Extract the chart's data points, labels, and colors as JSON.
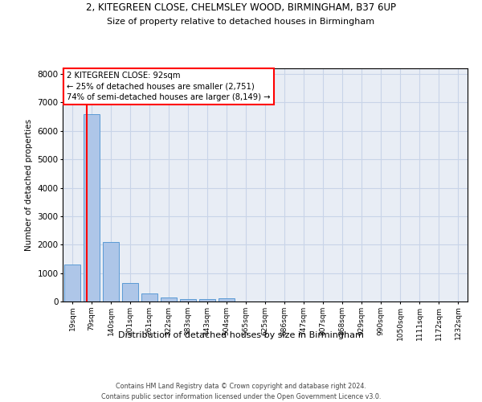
{
  "title_line1": "2, KITEGREEN CLOSE, CHELMSLEY WOOD, BIRMINGHAM, B37 6UP",
  "title_line2": "Size of property relative to detached houses in Birmingham",
  "xlabel": "Distribution of detached houses by size in Birmingham",
  "ylabel": "Number of detached properties",
  "categories": [
    "19sqm",
    "79sqm",
    "140sqm",
    "201sqm",
    "261sqm",
    "322sqm",
    "383sqm",
    "443sqm",
    "504sqm",
    "565sqm",
    "625sqm",
    "686sqm",
    "747sqm",
    "807sqm",
    "868sqm",
    "929sqm",
    "990sqm",
    "1050sqm",
    "1111sqm",
    "1172sqm",
    "1232sqm"
  ],
  "values": [
    1300,
    6600,
    2080,
    650,
    290,
    140,
    90,
    75,
    110,
    0,
    0,
    0,
    0,
    0,
    0,
    0,
    0,
    0,
    0,
    0,
    0
  ],
  "bar_color": "#aec6e8",
  "bar_edge_color": "#5b9bd5",
  "annotation_line1": "2 KITEGREEN CLOSE: 92sqm",
  "annotation_line2": "← 25% of detached houses are smaller (2,751)",
  "annotation_line3": "74% of semi-detached houses are larger (8,149) →",
  "vline_color": "red",
  "ylim": [
    0,
    8200
  ],
  "yticks": [
    0,
    1000,
    2000,
    3000,
    4000,
    5000,
    6000,
    7000,
    8000
  ],
  "grid_color": "#c8d4e8",
  "bg_color": "#e8edf5",
  "footer_line1": "Contains HM Land Registry data © Crown copyright and database right 2024.",
  "footer_line2": "Contains public sector information licensed under the Open Government Licence v3.0."
}
